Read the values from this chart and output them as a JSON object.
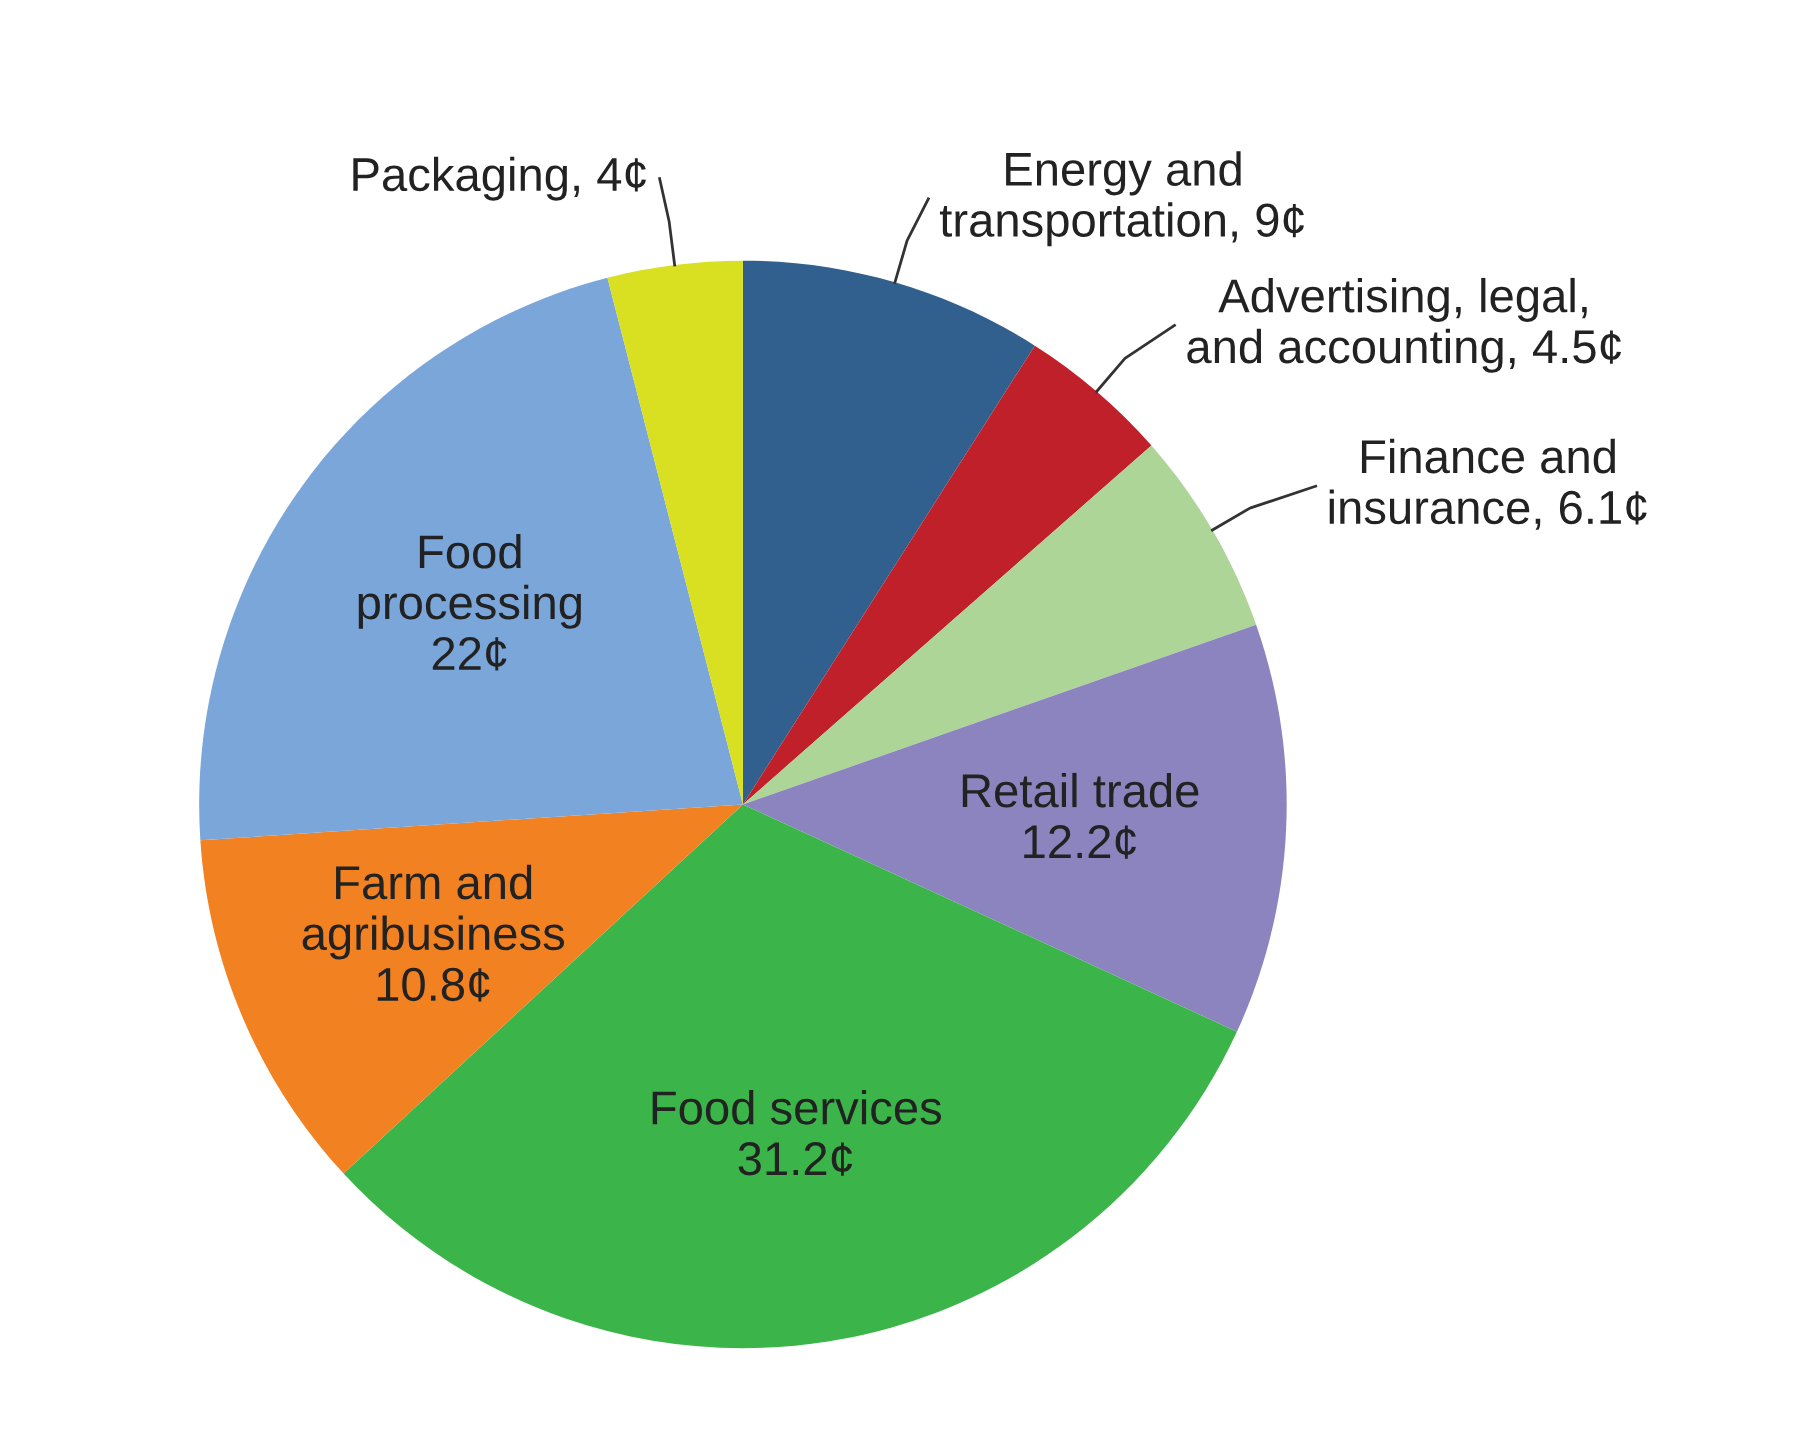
{
  "chart_data": {
    "type": "pie",
    "categories": [
      "Energy and\ntransportation, 9¢",
      "Advertising, legal,\nand accounting, 4.5¢",
      "Finance and\ninsurance, 6.1¢",
      "Retail trade\n12.2¢",
      "Food services\n31.2¢",
      "Farm and\nagribusiness\n10.8¢",
      "Food\nprocessing\n22¢",
      "Packaging, 4¢"
    ],
    "values": [
      9,
      4.5,
      6.1,
      12.2,
      31.2,
      10.8,
      22,
      4
    ],
    "colors": [
      "#31608f",
      "#c0202a",
      "#acd597",
      "#8c84bf",
      "#3bb54a",
      "#f28121",
      "#7ba6d9",
      "#d9e021"
    ]
  }
}
